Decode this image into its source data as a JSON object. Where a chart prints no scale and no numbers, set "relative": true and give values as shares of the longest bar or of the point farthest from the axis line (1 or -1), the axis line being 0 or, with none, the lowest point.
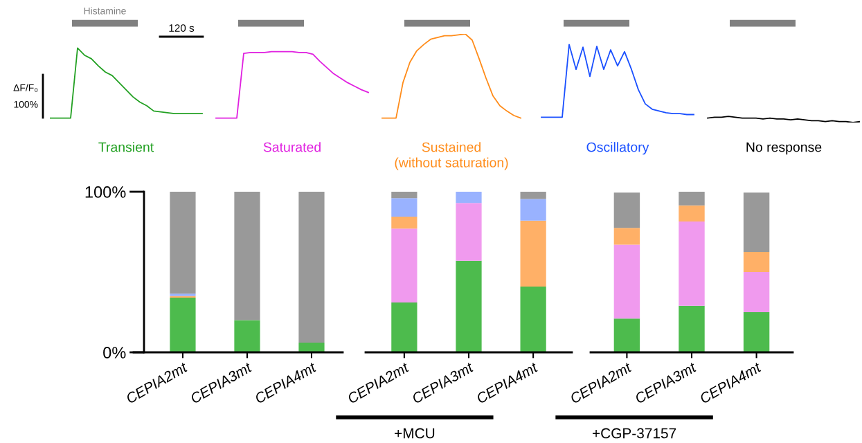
{
  "chart_data": [
    {
      "type": "line",
      "relative": true,
      "tick_labels": false,
      "grid": false,
      "categories": [
        null,
        null,
        null,
        null,
        null,
        null,
        null,
        null,
        null,
        null,
        null,
        null,
        null,
        null,
        null,
        null,
        null,
        null,
        null,
        null,
        null,
        null,
        null,
        null,
        null,
        null,
        null,
        null,
        null,
        null,
        null,
        null,
        null,
        null,
        null,
        null,
        null,
        null,
        null,
        null,
        null,
        null,
        null,
        null,
        null,
        null,
        null,
        null,
        null,
        null,
        null,
        null,
        null,
        null,
        null,
        null,
        null,
        null,
        null,
        null,
        null,
        null,
        null,
        null,
        null,
        null,
        null,
        null,
        null,
        null,
        null,
        null,
        null,
        null,
        null,
        null,
        null,
        null,
        null,
        null,
        null,
        null,
        null,
        null,
        null,
        null,
        null,
        null,
        null,
        null,
        null,
        null,
        null,
        null,
        null,
        null,
        null,
        null,
        null,
        null,
        null,
        null,
        null,
        null,
        null,
        null,
        null,
        null,
        null,
        null,
        null,
        null,
        null,
        null,
        null,
        null,
        null,
        null
      ],
      "series": [
        {
          "name": "Transient",
          "color": "#22a022",
          "values": [
            0.05,
            0.05,
            0.05,
            0.05,
            0.84,
            0.76,
            0.72,
            0.64,
            0.57,
            0.53,
            0.45,
            0.37,
            0.29,
            0.23,
            0.19,
            0.13,
            0.12,
            0.11,
            0.1,
            0.1,
            0.1,
            0.1,
            0.1,
            null,
            null,
            null,
            null,
            null,
            null,
            null,
            null,
            null,
            null,
            null,
            null,
            null,
            null,
            null,
            null,
            null,
            null,
            null,
            null,
            null,
            null,
            null,
            null,
            null,
            null,
            null,
            null,
            null,
            null,
            null,
            null,
            null,
            null,
            null,
            null,
            null,
            null,
            null,
            null,
            null,
            null,
            null,
            null,
            null,
            null,
            null,
            null,
            null,
            null,
            null,
            null,
            null,
            null,
            null,
            null,
            null,
            null,
            null,
            null,
            null,
            null,
            null,
            null,
            null,
            null,
            null,
            null,
            null,
            null,
            null,
            null,
            null,
            null,
            null,
            null,
            null,
            null,
            null,
            null,
            null,
            null,
            null,
            null,
            null,
            null,
            null,
            null,
            null,
            null,
            null,
            null,
            null,
            null,
            null
          ]
        },
        {
          "name": "Saturated",
          "color": "#e020e0",
          "values": [
            null,
            null,
            null,
            null,
            null,
            null,
            null,
            null,
            null,
            null,
            null,
            null,
            null,
            null,
            null,
            null,
            null,
            null,
            null,
            null,
            null,
            null,
            null,
            null,
            0.05,
            0.05,
            0.05,
            0.05,
            0.78,
            0.79,
            0.79,
            0.79,
            0.8,
            0.8,
            0.8,
            0.8,
            0.79,
            0.79,
            0.77,
            0.69,
            0.62,
            0.55,
            0.5,
            0.45,
            0.41,
            0.37,
            0.34,
            null,
            null,
            null,
            null,
            null,
            null,
            null,
            null,
            null,
            null,
            null,
            null,
            null,
            null,
            null,
            null,
            null,
            null,
            null,
            null,
            null,
            null,
            null,
            null,
            null,
            null,
            null,
            null,
            null,
            null,
            null,
            null,
            null,
            null,
            null,
            null,
            null,
            null,
            null,
            null,
            null,
            null,
            null,
            null,
            null,
            null,
            null,
            null,
            null,
            null,
            null,
            null,
            null,
            null,
            null,
            null,
            null,
            null,
            null,
            null,
            null,
            null,
            null,
            null,
            null,
            null,
            null,
            null,
            null,
            null,
            null
          ]
        },
        {
          "name": "Sustained\n(without saturation)",
          "color": "#ff8c1a",
          "values": [
            null,
            null,
            null,
            null,
            null,
            null,
            null,
            null,
            null,
            null,
            null,
            null,
            null,
            null,
            null,
            null,
            null,
            null,
            null,
            null,
            null,
            null,
            null,
            null,
            null,
            null,
            null,
            null,
            null,
            null,
            null,
            null,
            null,
            null,
            null,
            null,
            null,
            null,
            null,
            null,
            null,
            null,
            null,
            null,
            null,
            null,
            null,
            null,
            0.05,
            0.05,
            0.05,
            0.45,
            0.68,
            0.81,
            0.88,
            0.94,
            0.96,
            0.98,
            0.98,
            0.99,
            1.0,
            0.93,
            0.72,
            0.5,
            0.3,
            0.19,
            0.13,
            0.08,
            0.05,
            null,
            null,
            null,
            null,
            null,
            null,
            null,
            null,
            null,
            null,
            null,
            null,
            null,
            null,
            null,
            null,
            null,
            null,
            null,
            null,
            null,
            null,
            null,
            null,
            null,
            null,
            null,
            null,
            null,
            null,
            null,
            null,
            null,
            null,
            null,
            null,
            null,
            null,
            null,
            null,
            null,
            null,
            null,
            null,
            null,
            null,
            null,
            null,
            null
          ]
        },
        {
          "name": "Oscillatory",
          "color": "#1a50ff",
          "values": [
            null,
            null,
            null,
            null,
            null,
            null,
            null,
            null,
            null,
            null,
            null,
            null,
            null,
            null,
            null,
            null,
            null,
            null,
            null,
            null,
            null,
            null,
            null,
            null,
            null,
            null,
            null,
            null,
            null,
            null,
            null,
            null,
            null,
            null,
            null,
            null,
            null,
            null,
            null,
            null,
            null,
            null,
            null,
            null,
            null,
            null,
            null,
            null,
            null,
            null,
            null,
            null,
            null,
            null,
            null,
            null,
            null,
            null,
            null,
            null,
            null,
            null,
            null,
            null,
            null,
            null,
            null,
            null,
            null,
            null,
            null,
            0.06,
            0.06,
            0.06,
            0.06,
            0.88,
            0.6,
            0.85,
            0.52,
            0.86,
            0.6,
            0.82,
            0.64,
            0.8,
            0.6,
            0.37,
            0.21,
            0.15,
            0.13,
            0.11,
            0.1,
            0.1,
            0.09,
            0.09,
            null,
            null,
            null,
            null,
            null,
            null,
            null,
            null,
            null,
            null,
            null,
            null,
            null,
            null,
            null,
            null,
            null,
            null,
            null,
            null,
            null,
            null,
            null,
            null
          ]
        },
        {
          "name": "No response",
          "color": "#000000",
          "values": [
            null,
            null,
            null,
            null,
            null,
            null,
            null,
            null,
            null,
            null,
            null,
            null,
            null,
            null,
            null,
            null,
            null,
            null,
            null,
            null,
            null,
            null,
            null,
            null,
            null,
            null,
            null,
            null,
            null,
            null,
            null,
            null,
            null,
            null,
            null,
            null,
            null,
            null,
            null,
            null,
            null,
            null,
            null,
            null,
            null,
            null,
            null,
            null,
            null,
            null,
            null,
            null,
            null,
            null,
            null,
            null,
            null,
            null,
            null,
            null,
            null,
            null,
            null,
            null,
            null,
            null,
            null,
            null,
            null,
            null,
            null,
            null,
            null,
            null,
            null,
            null,
            null,
            null,
            null,
            null,
            null,
            null,
            null,
            null,
            null,
            null,
            null,
            null,
            null,
            null,
            null,
            null,
            null,
            null,
            null,
            0.05,
            0.06,
            0.06,
            0.07,
            0.06,
            0.05,
            0.05,
            0.05,
            0.04,
            0.05,
            0.04,
            0.04,
            0.03,
            0.04,
            0.03,
            0.02,
            0.02,
            0.01,
            0.02,
            0.01,
            0.01,
            0.0,
            0.01
          ]
        }
      ],
      "annotations": [
        "Histamine",
        "120 s",
        "ΔF/F₀",
        "100%"
      ]
    },
    {
      "type": "bar",
      "stacked": true,
      "categories": [
        "CEPIA2mt",
        "CEPIA3mt",
        "CEPIA4mt"
      ],
      "ylim": [
        0,
        100
      ],
      "yticks": [
        {
          "value": 0,
          "label": "0%"
        },
        {
          "value": 100,
          "label": "100%"
        }
      ],
      "grid": false,
      "series": [
        {
          "color": "#4dbb4d",
          "values": [
            34,
            20,
            6
          ]
        },
        {
          "color": "#f09aee",
          "values": [
            0,
            0,
            0
          ]
        },
        {
          "color": "#ffb067",
          "values": [
            1,
            0,
            0
          ]
        },
        {
          "color": "#99b2ff",
          "values": [
            1.5,
            0,
            0
          ]
        },
        {
          "color": "#999999",
          "values": [
            63.5,
            80,
            94
          ]
        }
      ]
    },
    {
      "type": "bar",
      "stacked": true,
      "categories": [
        "CEPIA2mt",
        "CEPIA3mt",
        "CEPIA4mt"
      ],
      "ylim": [
        0,
        100
      ],
      "tick_labels": "x",
      "xlabel": "+MCU",
      "grid": false,
      "series": [
        {
          "color": "#4dbb4d",
          "values": [
            31,
            57,
            41
          ]
        },
        {
          "color": "#f09aee",
          "values": [
            46,
            36,
            0
          ]
        },
        {
          "color": "#ffb067",
          "values": [
            7.5,
            0,
            41
          ]
        },
        {
          "color": "#99b2ff",
          "values": [
            11.5,
            7,
            13.5
          ]
        },
        {
          "color": "#999999",
          "values": [
            4,
            0,
            4.5
          ]
        }
      ]
    },
    {
      "type": "bar",
      "stacked": true,
      "categories": [
        "CEPIA2mt",
        "CEPIA3mt",
        "CEPIA4mt"
      ],
      "ylim": [
        0,
        100
      ],
      "tick_labels": "x",
      "xlabel": "+CGP-37157",
      "grid": false,
      "series": [
        {
          "color": "#4dbb4d",
          "values": [
            21,
            29,
            25
          ]
        },
        {
          "color": "#f09aee",
          "values": [
            46,
            52.5,
            25
          ]
        },
        {
          "color": "#ffb067",
          "values": [
            10.5,
            10,
            12.5
          ]
        },
        {
          "color": "#99b2ff",
          "values": [
            0,
            0,
            0
          ]
        },
        {
          "color": "#999999",
          "values": [
            22,
            8.5,
            37
          ]
        }
      ]
    }
  ]
}
